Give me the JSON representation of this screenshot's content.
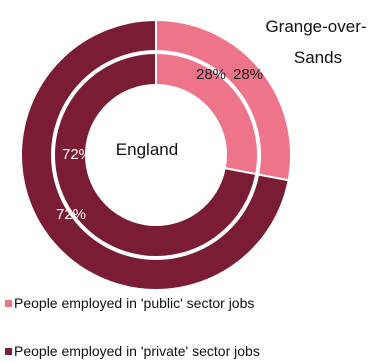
{
  "colors": {
    "public": "#EE7489",
    "private": "#7A1C34",
    "separator": "#ffffff"
  },
  "chart_data": {
    "type": "pie",
    "variant": "nested-donut",
    "categories": [
      "People employed in 'public' sector jobs",
      "People employed in 'private' sector jobs"
    ],
    "series": [
      {
        "name": "Grange-over-Sands",
        "ring": "outer",
        "values": [
          28,
          72
        ],
        "labels": [
          "28%",
          "72%"
        ]
      },
      {
        "name": "England",
        "ring": "inner",
        "values": [
          28,
          72
        ],
        "labels": [
          "28%",
          "72%"
        ]
      }
    ],
    "annotations": {
      "outer_ring_name_line1": "Grange-over-",
      "outer_ring_name_line2": "Sands",
      "inner_ring_name": "England"
    },
    "legend": {
      "placement": "bottom",
      "items": [
        "People employed in 'public' sector jobs",
        "People employed in 'private' sector jobs"
      ]
    }
  }
}
